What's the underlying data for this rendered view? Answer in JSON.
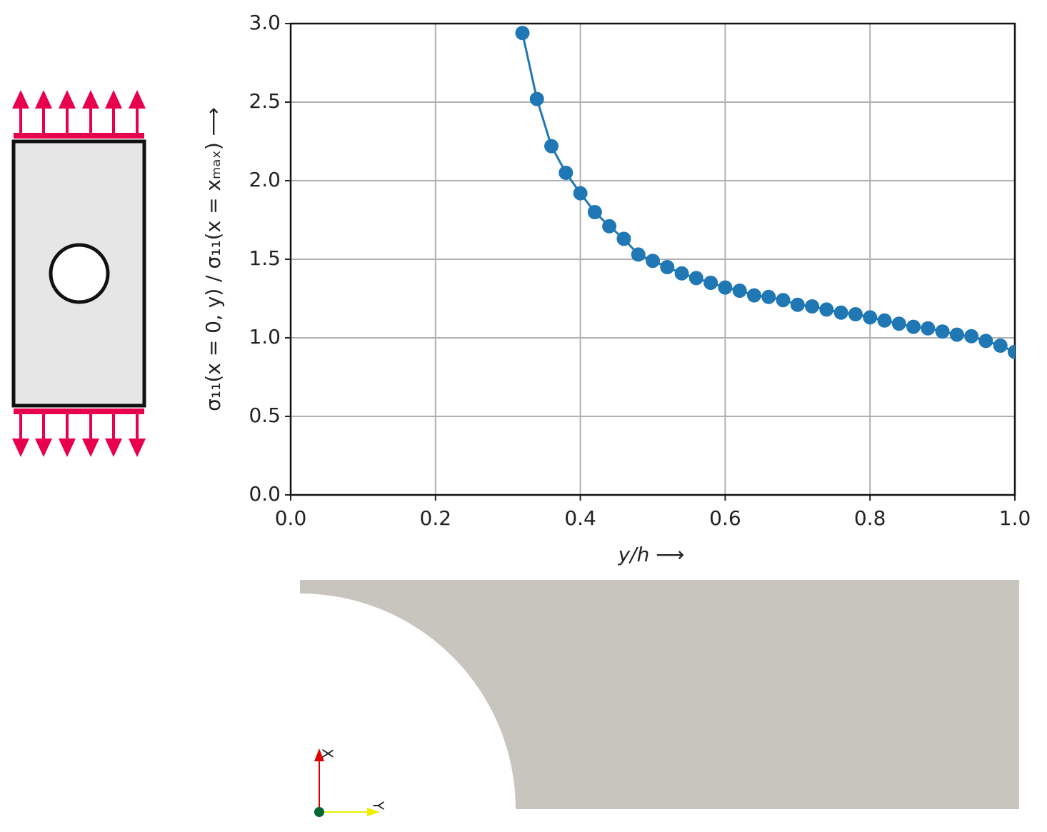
{
  "chart_data": {
    "type": "line",
    "xlabel": "y/h  ⟶",
    "ylabel": "σ₁₁(x = 0, y) / σ₁₁(x = xₘₐₓ)  ⟶",
    "x": [
      0.32,
      0.34,
      0.36,
      0.38,
      0.4,
      0.42,
      0.44,
      0.46,
      0.48,
      0.5,
      0.52,
      0.54,
      0.56,
      0.58,
      0.6,
      0.62,
      0.64,
      0.66,
      0.68,
      0.7,
      0.72,
      0.74,
      0.76,
      0.78,
      0.8,
      0.82,
      0.84,
      0.86,
      0.88,
      0.9,
      0.92,
      0.94,
      0.96,
      0.98,
      1.0
    ],
    "values": [
      2.94,
      2.52,
      2.22,
      2.05,
      1.92,
      1.8,
      1.71,
      1.63,
      1.53,
      1.49,
      1.45,
      1.41,
      1.38,
      1.35,
      1.32,
      1.3,
      1.27,
      1.26,
      1.24,
      1.21,
      1.2,
      1.18,
      1.16,
      1.15,
      1.13,
      1.11,
      1.09,
      1.07,
      1.06,
      1.04,
      1.02,
      1.01,
      0.98,
      0.95,
      0.91
    ],
    "color": "#1f77b4",
    "xlim": [
      0,
      1.0
    ],
    "ylim": [
      0,
      3.0
    ],
    "xticks": [
      {
        "value": 0,
        "label": "0.0"
      },
      0.2,
      0.4,
      0.6,
      0.8,
      {
        "value": 1,
        "label": "1.0"
      }
    ],
    "yticks": [
      {
        "value": 0,
        "label": "0.0"
      },
      0.5,
      {
        "value": 1,
        "label": "1.0"
      },
      1.5,
      {
        "value": 2,
        "label": "2.0"
      },
      2.5,
      {
        "value": 3,
        "label": "3.0"
      }
    ],
    "grid": true
  },
  "triad": {
    "x_label": "X",
    "y_label": "Y"
  }
}
